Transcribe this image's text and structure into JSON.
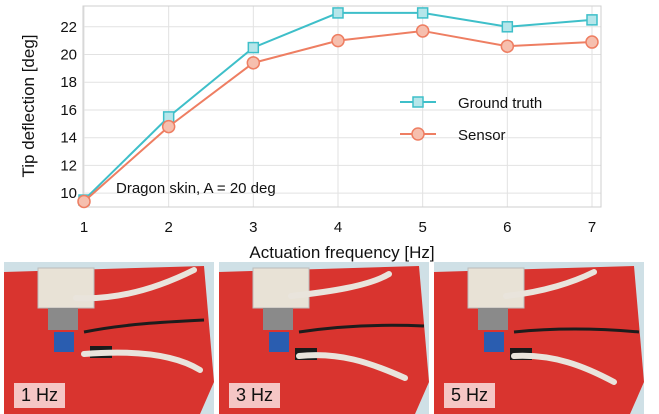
{
  "chart_data": {
    "type": "line",
    "x": [
      1,
      2,
      3,
      4,
      5,
      6,
      7
    ],
    "series": [
      {
        "name": "Ground truth",
        "values": [
          9.5,
          15.5,
          20.5,
          23.0,
          23.0,
          22.0,
          22.5
        ],
        "color": "#3ebfc9",
        "marker": "square"
      },
      {
        "name": "Sensor",
        "values": [
          9.4,
          14.8,
          19.4,
          21.0,
          21.7,
          20.6,
          20.9
        ],
        "color": "#ee7e62",
        "marker": "circle"
      }
    ],
    "xlabel": "Actuation frequency [Hz]",
    "ylabel": "Tip deflection [deg]",
    "xlim": [
      1,
      7
    ],
    "ylim": [
      9,
      23.5
    ],
    "xticks": [
      1,
      2,
      3,
      4,
      5,
      6,
      7
    ],
    "yticks": [
      10,
      12,
      14,
      16,
      18,
      20,
      22
    ],
    "grid": true,
    "legend_position": "center-right",
    "annotation": "Dragon skin, A = 20 deg"
  },
  "photos": [
    {
      "label": "1 Hz",
      "background_color": "#d9342f"
    },
    {
      "label": "3 Hz",
      "background_color": "#d9342f"
    },
    {
      "label": "5 Hz",
      "background_color": "#d9342f"
    }
  ]
}
